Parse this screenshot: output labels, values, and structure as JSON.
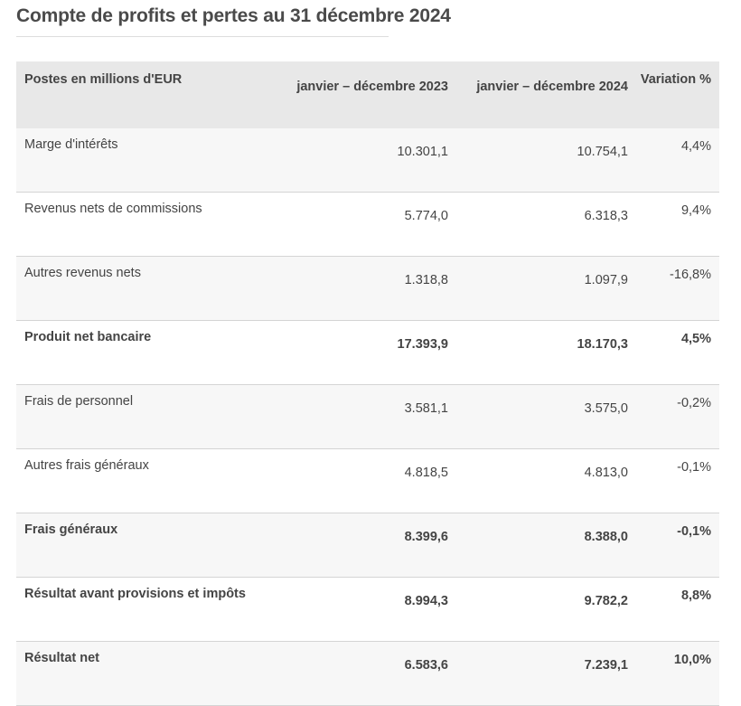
{
  "title": "Compte de profits et pertes au 31 décembre 2024",
  "table": {
    "headers": [
      "Postes en millions d'EUR",
      "janvier – décembre 2023",
      "janvier – décembre 2024",
      "Variation %"
    ],
    "rows": [
      {
        "label": "Marge d'intérêts",
        "y2023": "10.301,1",
        "y2024": "10.754,1",
        "var": "4,4%",
        "bold": false
      },
      {
        "label": "Revenus nets de commissions",
        "y2023": "5.774,0",
        "y2024": "6.318,3",
        "var": "9,4%",
        "bold": false
      },
      {
        "label": "Autres revenus nets",
        "y2023": "1.318,8",
        "y2024": "1.097,9",
        "var": "-16,8%",
        "bold": false
      },
      {
        "label": "Produit net bancaire",
        "y2023": "17.393,9",
        "y2024": "18.170,3",
        "var": "4,5%",
        "bold": true
      },
      {
        "label": "Frais de personnel",
        "y2023": "3.581,1",
        "y2024": "3.575,0",
        "var": "-0,2%",
        "bold": false
      },
      {
        "label": "Autres frais généraux",
        "y2023": "4.818,5",
        "y2024": "4.813,0",
        "var": "-0,1%",
        "bold": false
      },
      {
        "label": "Frais généraux",
        "y2023": "8.399,6",
        "y2024": "8.388,0",
        "var": "-0,1%",
        "bold": true
      },
      {
        "label": "Résultat avant provisions et impôts",
        "y2023": "8.994,3",
        "y2024": "9.782,2",
        "var": "8,8%",
        "bold": true
      },
      {
        "label": "Résultat net",
        "y2023": "6.583,6",
        "y2024": "7.239,1",
        "var": "10,0%",
        "bold": true
      }
    ]
  }
}
